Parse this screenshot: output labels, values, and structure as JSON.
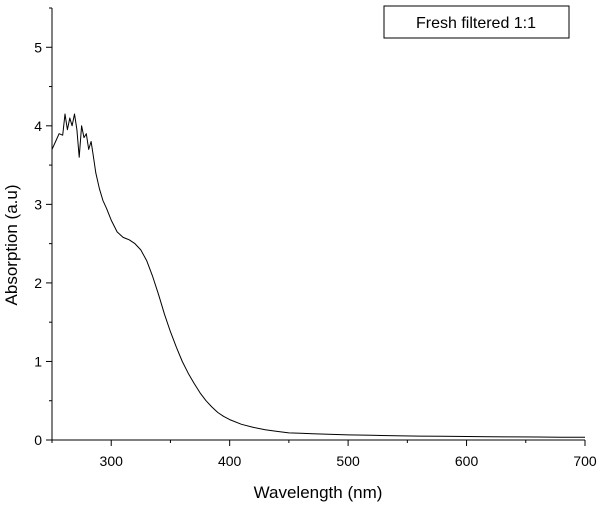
{
  "chart_data": {
    "type": "line",
    "xlabel": "Wavelength (nm)",
    "ylabel": "Absorption (a.u)",
    "xlim": [
      250,
      700
    ],
    "ylim": [
      0,
      5.5
    ],
    "x_ticks": [
      300,
      400,
      500,
      600,
      700
    ],
    "y_ticks": [
      0,
      1,
      2,
      3,
      4,
      5
    ],
    "grid": false,
    "legend_position": "top-right",
    "series": [
      {
        "name": "Fresh filtered 1:1",
        "color": "#000000",
        "x": [
          250,
          253,
          256,
          259,
          261,
          263,
          265,
          267,
          269,
          271,
          273,
          275,
          277,
          279,
          281,
          283,
          285,
          287,
          290,
          293,
          296,
          300,
          305,
          310,
          315,
          320,
          325,
          330,
          335,
          340,
          345,
          350,
          355,
          360,
          365,
          370,
          375,
          380,
          385,
          390,
          395,
          400,
          410,
          420,
          430,
          440,
          450,
          460,
          470,
          480,
          490,
          500,
          520,
          540,
          560,
          580,
          600,
          620,
          640,
          660,
          680,
          700
        ],
        "y": [
          3.7,
          3.8,
          3.9,
          3.88,
          4.15,
          3.95,
          4.1,
          4.0,
          4.15,
          3.95,
          3.6,
          4.0,
          3.85,
          3.9,
          3.7,
          3.8,
          3.6,
          3.4,
          3.2,
          3.05,
          2.95,
          2.8,
          2.65,
          2.58,
          2.55,
          2.5,
          2.42,
          2.28,
          2.08,
          1.85,
          1.6,
          1.38,
          1.18,
          1.0,
          0.85,
          0.72,
          0.6,
          0.5,
          0.42,
          0.35,
          0.3,
          0.26,
          0.2,
          0.16,
          0.13,
          0.11,
          0.09,
          0.085,
          0.08,
          0.075,
          0.07,
          0.065,
          0.06,
          0.055,
          0.05,
          0.048,
          0.045,
          0.042,
          0.04,
          0.038,
          0.036,
          0.035
        ]
      }
    ]
  }
}
